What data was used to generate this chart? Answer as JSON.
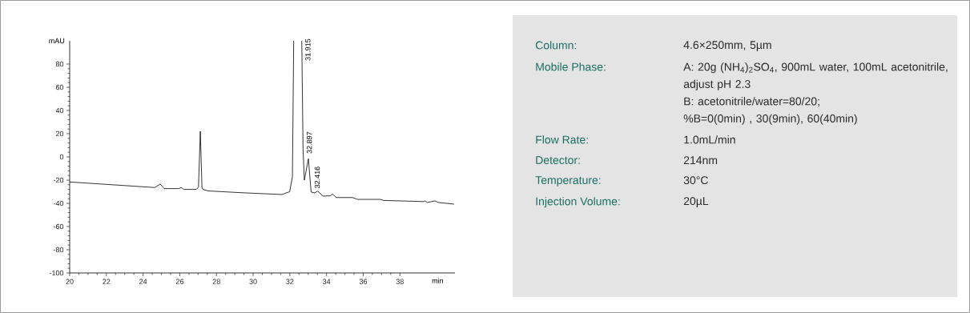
{
  "chart_data": [
    {
      "type": "line",
      "ylabel": "mAU",
      "xlabel": "min",
      "xlim": [
        20,
        41
      ],
      "ylim": [
        -100,
        100
      ],
      "xticks": [
        20,
        22,
        24,
        26,
        28,
        30,
        32,
        34,
        36,
        38
      ],
      "yticks": [
        -100,
        -80,
        -60,
        -40,
        -20,
        0,
        20,
        40,
        60,
        80
      ],
      "color": "#000000",
      "x": [
        20,
        24.64,
        24.93,
        25.15,
        25.95,
        26.07,
        26.22,
        26.9,
        27.02,
        27.12,
        27.21,
        27.26,
        27.55,
        29.3,
        31.56,
        31.99,
        32.14,
        32.21,
        32.43,
        32.65,
        32.72,
        32.79,
        33.01,
        33.16,
        33.35,
        33.52,
        33.81,
        34.2,
        34.32,
        34.54,
        35.41,
        35.7,
        36.94,
        37.1,
        39.3,
        39.35,
        39.5,
        39.9,
        40.1,
        40.95
      ],
      "values": [
        -21.6,
        -26.4,
        -23.4,
        -27.3,
        -27.3,
        -26.3,
        -28,
        -28,
        -26,
        22,
        -26,
        -28,
        -29.3,
        -30.8,
        -32.4,
        -30,
        -17,
        100,
        null,
        100,
        6.4,
        -20,
        -1.6,
        -30.3,
        -31,
        -29.5,
        -33.8,
        -33.5,
        -32,
        -35,
        -35,
        -36.6,
        -36.6,
        -37.5,
        -38.5,
        -37.8,
        -39.3,
        -37.9,
        -39.3,
        -40.7
      ],
      "annotations": [
        {
          "text": "31.915",
          "x": 32.79,
          "y": 82
        },
        {
          "text": "32.897",
          "x": 32.87,
          "y": 2
        },
        {
          "text": "32.416",
          "x": 33.3,
          "y": -28
        }
      ]
    },
    {
      "type": "other",
      "annotations": [
        "Column:",
        "4.6×250mm, 5µm",
        "Mobile Phase:",
        "A: 20g (NH$_{4}$)$_{2}$SO$_{4}$, 900mL water, 100mL acetonitrile, adjust pH 2.3",
        "B: acetonitrile/water=80/20;",
        "%B=0(0min) , 30(9min), 60(40min)",
        "Flow Rate:",
        "1.0mL/min",
        "Detector:",
        "214nm",
        "Temperature:",
        "30°C",
        "Injection Volume:",
        "20µL"
      ]
    }
  ]
}
